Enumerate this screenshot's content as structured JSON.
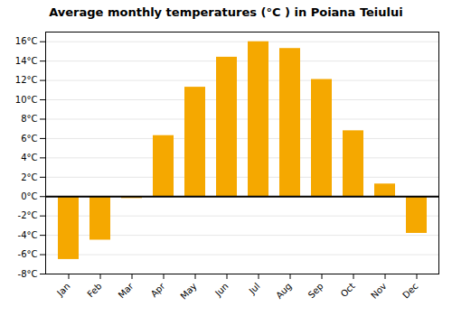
{
  "chart_data": {
    "type": "bar",
    "title": "Average monthly temperatures (°C ) in Poiana Teiului",
    "categories": [
      "Jan",
      "Feb",
      "Mar",
      "Apr",
      "May",
      "Jun",
      "Jul",
      "Aug",
      "Sep",
      "Oct",
      "Nov",
      "Dec"
    ],
    "values": [
      -6.5,
      -4.5,
      -0.2,
      6.3,
      11.3,
      14.4,
      16.0,
      15.3,
      12.1,
      6.8,
      1.3,
      -3.8
    ],
    "color": "#F5A800",
    "ylim": [
      -8,
      17
    ],
    "yticks": [
      {
        "value": -8,
        "label": "-8°C"
      },
      {
        "value": -6,
        "label": "-6°C"
      },
      {
        "value": -4,
        "label": "-4°C"
      },
      {
        "value": -2,
        "label": "-2°C"
      },
      {
        "value": 0,
        "label": "0°C"
      },
      {
        "value": 2,
        "label": "2°C"
      },
      {
        "value": 4,
        "label": "4°C"
      },
      {
        "value": 6,
        "label": "6°C"
      },
      {
        "value": 8,
        "label": "8°C"
      },
      {
        "value": 10,
        "label": "10°C"
      },
      {
        "value": 12,
        "label": "12°C"
      },
      {
        "value": 14,
        "label": "14°C"
      },
      {
        "value": 16,
        "label": "16°C"
      }
    ],
    "grid": true
  }
}
